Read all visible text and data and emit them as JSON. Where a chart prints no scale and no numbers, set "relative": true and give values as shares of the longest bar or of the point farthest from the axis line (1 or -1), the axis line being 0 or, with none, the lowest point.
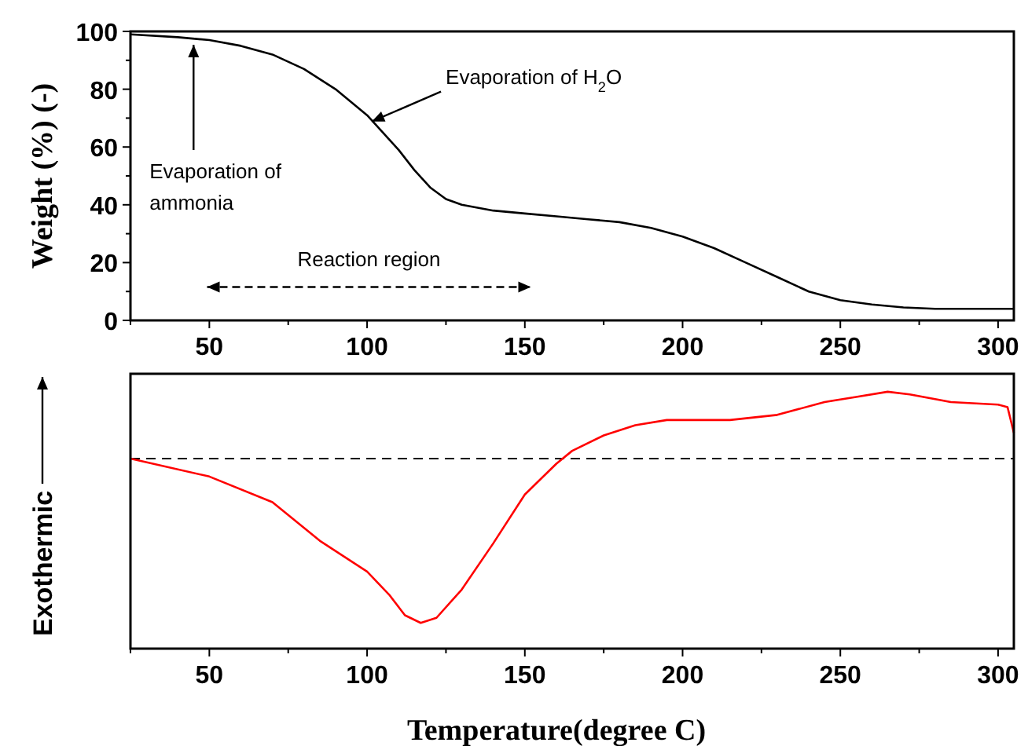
{
  "chart_data": [
    {
      "type": "line",
      "ylabel": "Weight (%) (-)",
      "xlim": [
        25,
        305
      ],
      "xticks": [
        {
          "value": 25,
          "label": null
        },
        50,
        {
          "value": 75,
          "label": null
        },
        100,
        {
          "value": 125,
          "label": null
        },
        150,
        {
          "value": 175,
          "label": null
        },
        200,
        {
          "value": 225,
          "label": null
        },
        250,
        {
          "value": 275,
          "label": null
        },
        300
      ],
      "ylim": [
        0,
        100
      ],
      "yticks": [
        0,
        {
          "value": 10,
          "label": null
        },
        20,
        {
          "value": 30,
          "label": null
        },
        40,
        {
          "value": 50,
          "label": null
        },
        60,
        {
          "value": 70,
          "label": null
        },
        80,
        {
          "value": 90,
          "label": null
        },
        100
      ],
      "x": [
        25,
        40,
        50,
        60,
        70,
        80,
        90,
        100,
        110,
        115,
        120,
        125,
        130,
        140,
        150,
        160,
        170,
        180,
        190,
        200,
        210,
        220,
        230,
        240,
        250,
        260,
        270,
        280,
        290,
        305
      ],
      "series": [
        {
          "color": "#000000",
          "values": [
            99,
            98,
            97,
            95,
            92,
            87,
            80,
            71,
            59,
            52,
            46,
            42,
            40,
            38,
            37,
            36,
            35,
            34,
            32,
            29,
            25,
            20,
            15,
            10,
            7,
            5.5,
            4.5,
            4,
            4,
            4
          ]
        }
      ],
      "annotations": [
        {
          "text": "Evaporation of H$_{2}$O",
          "x": 100,
          "y": 71
        },
        {
          "text": "Evaporation of\nammonia",
          "x": 45,
          "y": 97
        },
        "Reaction region"
      ]
    },
    {
      "type": "line",
      "relative": true,
      "xlabel": "Temperature(degree C)",
      "ylabel": "Exothermic",
      "tick_labels": "x",
      "xlim": [
        25,
        305
      ],
      "xticks": [
        {
          "value": 25,
          "label": null
        },
        50,
        {
          "value": 75,
          "label": null
        },
        100,
        {
          "value": 125,
          "label": null
        },
        150,
        {
          "value": 175,
          "label": null
        },
        200,
        {
          "value": 225,
          "label": null
        },
        250,
        {
          "value": 275,
          "label": null
        },
        300
      ],
      "x": [
        25,
        50,
        70,
        85,
        100,
        107,
        112,
        117,
        122,
        130,
        140,
        150,
        160,
        165,
        175,
        185,
        195,
        215,
        230,
        245,
        255,
        265,
        272,
        285,
        300,
        303,
        305
      ],
      "series": [
        {
          "color": "#ff0000",
          "values": [
            0.74,
            0.67,
            0.57,
            0.42,
            0.3,
            0.21,
            0.13,
            0.1,
            0.12,
            0.23,
            0.41,
            0.6,
            0.72,
            0.77,
            0.83,
            0.87,
            0.89,
            0.89,
            0.91,
            0.96,
            0.98,
            1,
            0.99,
            0.96,
            0.95,
            0.94,
            0.84
          ]
        }
      ],
      "ref_lines": [
        {
          "axis": "y",
          "value": 0.74,
          "color": "#000000",
          "line_style": "dashed"
        }
      ]
    }
  ]
}
